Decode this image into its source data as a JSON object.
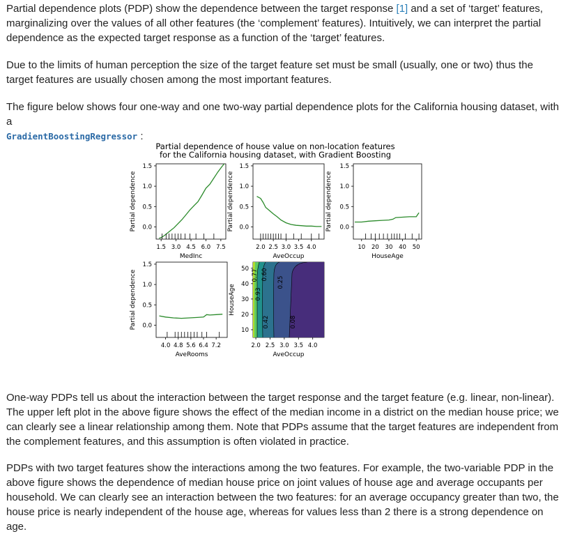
{
  "paragraphs": {
    "p1_before_ref": "Partial dependence plots (PDP) show the dependence between the target response ",
    "p1_ref": "[1]",
    "p1_after_ref": " and a set of ‘target’ features, marginalizing over the values of all other features (the ‘complement’ features). Intuitively, we can interpret the partial dependence as the expected target response as a function of the ‘target’ features.",
    "p2": "Due to the limits of human perception the size of the target feature set must be small (usually, one or two) thus the target features are usually chosen among the most important features.",
    "p3_text": "The figure below shows four one-way and one two-way partial dependence plots for the California housing dataset, with a",
    "p3_code": "GradientBoostingRegressor",
    "p3_end": " :",
    "p4": "One-way PDPs tell us about the interaction between the target response and the target feature (e.g. linear, non-linear). The upper left plot in the above figure shows the effect of the median income in a district on the median house price; we can clearly see a linear relationship among them. Note that PDPs assume that the target features are independent from the complement features, and this assumption is often violated in practice.",
    "p5": "PDPs with two target features show the interactions among the two features. For example, the two-variable PDP in the above figure shows the dependence of median house price on joint values of house age and average occupants per household. We can clearly see an interaction between the two features: for an average occupancy greater than two, the house price is nearly independent of the house age, whereas for values less than 2 there is a strong dependence on age."
  },
  "figure": {
    "title_line1": "Partial dependence of house value on non-location features",
    "title_line2": "for the California housing dataset, with Gradient Boosting",
    "line_color": "#2a8a2a",
    "chart_data": [
      {
        "type": "line",
        "xlabel": "MedInc",
        "ylabel": "Partial dependence",
        "xlim": [
          1.0,
          8.0
        ],
        "ylim": [
          -0.3,
          1.55
        ],
        "xticks": [
          "1.5",
          "3.0",
          "4.5",
          "6.0",
          "7.5"
        ],
        "xtick_values": [
          1.5,
          3.0,
          4.5,
          6.0,
          7.5
        ],
        "yticks": [
          "0.0",
          "0.5",
          "1.0",
          "1.5"
        ],
        "ytick_values": [
          0.0,
          0.5,
          1.0,
          1.5
        ],
        "x": [
          1.3,
          1.6,
          2.0,
          2.4,
          2.8,
          3.2,
          3.6,
          4.0,
          4.4,
          4.8,
          5.2,
          5.6,
          6.0,
          6.4,
          6.8,
          7.2,
          7.6,
          8.0
        ],
        "y": [
          -0.28,
          -0.25,
          -0.18,
          -0.1,
          -0.02,
          0.08,
          0.18,
          0.3,
          0.42,
          0.52,
          0.62,
          0.78,
          0.95,
          1.05,
          1.2,
          1.35,
          1.48,
          1.6
        ],
        "rug": [
          1.6,
          2.0,
          2.3,
          2.6,
          2.9,
          3.2,
          3.5,
          3.9,
          4.4,
          5.0,
          5.8,
          6.8
        ]
      },
      {
        "type": "line",
        "xlabel": "AveOccup",
        "ylabel": "Partial dependence",
        "xlim": [
          1.7,
          4.5
        ],
        "ylim": [
          -0.3,
          1.55
        ],
        "xticks": [
          "2.0",
          "2.5",
          "3.0",
          "3.5",
          "4.0"
        ],
        "xtick_values": [
          2.0,
          2.5,
          3.0,
          3.5,
          4.0
        ],
        "yticks": [
          "0.0",
          "0.5",
          "1.0",
          "1.5"
        ],
        "ytick_values": [
          0.0,
          0.5,
          1.0,
          1.5
        ],
        "x": [
          1.85,
          2.0,
          2.1,
          2.2,
          2.35,
          2.5,
          2.65,
          2.8,
          3.0,
          3.2,
          3.4,
          3.6,
          3.8,
          4.0,
          4.2,
          4.4
        ],
        "y": [
          0.75,
          0.7,
          0.6,
          0.48,
          0.4,
          0.32,
          0.25,
          0.17,
          0.1,
          0.06,
          0.04,
          0.03,
          0.02,
          0.02,
          0.01,
          0.01
        ],
        "rug": [
          2.0,
          2.1,
          2.2,
          2.3,
          2.4,
          2.5,
          2.6,
          2.7,
          2.8,
          3.0,
          3.3,
          3.6,
          4.0,
          4.3
        ]
      },
      {
        "type": "line",
        "xlabel": "HouseAge",
        "ylabel": "Partial dependence",
        "xlim": [
          4.0,
          54.0
        ],
        "ylim": [
          -0.3,
          1.55
        ],
        "xticks": [
          "10",
          "20",
          "30",
          "40",
          "50"
        ],
        "xtick_values": [
          10,
          20,
          30,
          40,
          50
        ],
        "yticks": [
          "0.0",
          "0.5",
          "1.0",
          "1.5"
        ],
        "ytick_values": [
          0.0,
          0.5,
          1.0,
          1.5
        ],
        "x": [
          5,
          10,
          15,
          20,
          25,
          30,
          33,
          35,
          40,
          45,
          50,
          52
        ],
        "y": [
          0.12,
          0.12,
          0.14,
          0.15,
          0.16,
          0.17,
          0.19,
          0.23,
          0.24,
          0.25,
          0.25,
          0.35
        ],
        "rug": [
          13,
          17,
          20,
          23,
          26,
          29,
          32,
          34,
          36,
          38,
          42,
          47,
          52
        ]
      },
      {
        "type": "line",
        "xlabel": "AveRooms",
        "ylabel": "Partial dependence",
        "xlim": [
          3.4,
          7.9
        ],
        "ylim": [
          -0.3,
          1.55
        ],
        "xticks": [
          "4.0",
          "4.8",
          "5.6",
          "6.4",
          "7.2"
        ],
        "xtick_values": [
          4.0,
          4.8,
          5.6,
          6.4,
          7.2
        ],
        "yticks": [
          "0.0",
          "0.5",
          "1.0",
          "1.5"
        ],
        "ytick_values": [
          0.0,
          0.5,
          1.0,
          1.5
        ],
        "x": [
          3.6,
          4.0,
          4.5,
          5.0,
          5.5,
          6.0,
          6.4,
          6.6,
          6.8,
          7.2,
          7.6
        ],
        "y": [
          0.23,
          0.2,
          0.18,
          0.17,
          0.18,
          0.19,
          0.2,
          0.26,
          0.25,
          0.26,
          0.27
        ],
        "rug": [
          4.1,
          4.6,
          4.8,
          5.0,
          5.2,
          5.4,
          5.6,
          5.8,
          6.0,
          6.3,
          6.6,
          7.4
        ]
      },
      {
        "type": "heatmap",
        "xlabel": "AveOccup",
        "ylabel": "HouseAge",
        "xlim": [
          1.9,
          4.4
        ],
        "ylim": [
          5,
          54
        ],
        "xticks": [
          "2.0",
          "2.5",
          "3.0",
          "3.5",
          "4.0"
        ],
        "xtick_values": [
          2.0,
          2.5,
          3.0,
          3.5,
          4.0
        ],
        "yticks": [
          "10",
          "20",
          "30",
          "40",
          "50"
        ],
        "ytick_values": [
          10,
          20,
          30,
          40,
          50
        ],
        "contour_labels": [
          "0.77",
          "0.93",
          "0.60",
          "0.42",
          "0.25",
          "0.08"
        ],
        "rug_x": [
          2.0,
          2.1,
          2.2,
          2.3,
          2.4,
          2.5,
          2.6,
          2.8,
          3.0,
          3.3,
          3.6,
          4.0
        ],
        "rug_y": [
          12,
          17,
          20,
          24,
          27,
          30,
          33,
          36,
          40,
          45,
          50
        ]
      }
    ]
  }
}
